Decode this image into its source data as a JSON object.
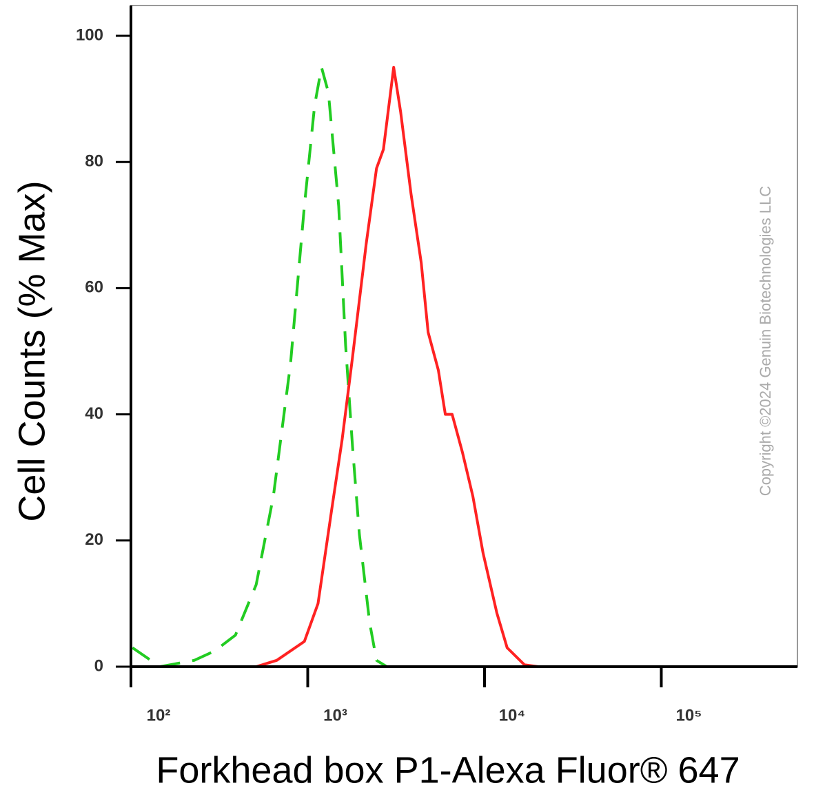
{
  "chart_data": {
    "type": "line",
    "x_label": "Forkhead box P1-Alexa Fluor® 647",
    "y_label": "Cell Counts (% Max)",
    "watermark": "Copyright ©2024 Genuin Biotechnologies LLC",
    "xscale": "log",
    "xlim": [
      100,
      589000
    ],
    "ylim": [
      0,
      100
    ],
    "xticks": [
      {
        "value": 100,
        "label": "10²"
      },
      {
        "value": 1000,
        "label": "10³"
      },
      {
        "value": 10000,
        "label": "10⁴"
      },
      {
        "value": 100000,
        "label": "10⁵"
      }
    ],
    "yticks": [
      0,
      20,
      40,
      60,
      80,
      100
    ],
    "series": [
      {
        "color": "#22cc22",
        "style": "dashed",
        "x": [
          102,
          146,
          228,
          298,
          390,
          511,
          639,
          799,
          957,
          1094,
          1197,
          1309,
          1496,
          1637,
          1791,
          1959,
          2239,
          2449,
          2801,
          500000
        ],
        "values": [
          3,
          0,
          1,
          2.5,
          5,
          13,
          27,
          48,
          73,
          89,
          95,
          91,
          73,
          51,
          35,
          21,
          7,
          1,
          0,
          0
        ]
      },
      {
        "color": "#ff2222",
        "style": "solid",
        "x": [
          102,
          511,
          668,
          957,
          1143,
          1368,
          1565,
          1791,
          2142,
          2449,
          2680,
          3064,
          3350,
          3836,
          4385,
          4797,
          5483,
          6000,
          6561,
          7499,
          8590,
          9817,
          11750,
          13430,
          16830,
          20140,
          500000
        ],
        "values": [
          0,
          0,
          1,
          4,
          10,
          25,
          36,
          49,
          67,
          79,
          82,
          95,
          88,
          75,
          64,
          53,
          47,
          40,
          40,
          34,
          27,
          18,
          8.5,
          3,
          0.3,
          0,
          0
        ]
      }
    ]
  }
}
